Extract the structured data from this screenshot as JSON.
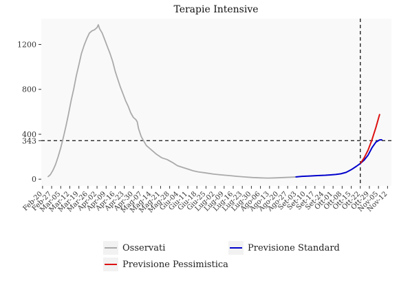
{
  "chart_data": {
    "type": "line",
    "title": "Terapie Intensive",
    "xlabel": "",
    "ylabel": "",
    "x_ticks": [
      "Feb-20",
      "Feb-27",
      "Mar-05",
      "Mar-12",
      "Mar-19",
      "Mar-26",
      "Apr-02",
      "Apr-09",
      "Apr-16",
      "Apr-23",
      "Apr-30",
      "Mag-07",
      "Mag-14",
      "Mag-21",
      "Mag-28",
      "Giu-04",
      "Giu-11",
      "Giu-18",
      "Giu-25",
      "Lug-02",
      "Lug-09",
      "Lug-16",
      "Lug-23",
      "Lug-30",
      "Ago-06",
      "Ago-13",
      "Ago-20",
      "Ago-27",
      "Set-03",
      "Set-10",
      "Set-17",
      "Set-24",
      "Ott-01",
      "Ott-08",
      "Ott-15",
      "Ott-22",
      "Ott-29",
      "Nov-05",
      "Nov-12"
    ],
    "y_ticks": [
      "0",
      "343",
      "400",
      "800",
      "1200"
    ],
    "y_tick_values": [
      0,
      343,
      400,
      800,
      1200
    ],
    "ylim": [
      -60,
      1430
    ],
    "xlim_days": [
      -1,
      269
    ],
    "hline": 343,
    "vline_day": 245,
    "grid": false,
    "legend_position": "bottom",
    "series": [
      {
        "name": "Osservati",
        "color": "#aaaaaa",
        "points": [
          [
            4,
            20
          ],
          [
            6,
            40
          ],
          [
            8,
            80
          ],
          [
            10,
            130
          ],
          [
            12,
            200
          ],
          [
            14,
            280
          ],
          [
            16,
            370
          ],
          [
            18,
            470
          ],
          [
            20,
            580
          ],
          [
            22,
            700
          ],
          [
            24,
            800
          ],
          [
            26,
            920
          ],
          [
            28,
            1020
          ],
          [
            30,
            1120
          ],
          [
            32,
            1190
          ],
          [
            34,
            1250
          ],
          [
            36,
            1300
          ],
          [
            38,
            1320
          ],
          [
            40,
            1330
          ],
          [
            42,
            1350
          ],
          [
            43,
            1375
          ],
          [
            44,
            1340
          ],
          [
            46,
            1300
          ],
          [
            48,
            1240
          ],
          [
            50,
            1180
          ],
          [
            52,
            1120
          ],
          [
            54,
            1050
          ],
          [
            56,
            960
          ],
          [
            58,
            890
          ],
          [
            60,
            820
          ],
          [
            62,
            760
          ],
          [
            64,
            700
          ],
          [
            66,
            650
          ],
          [
            68,
            590
          ],
          [
            70,
            550
          ],
          [
            72,
            530
          ],
          [
            73,
            510
          ],
          [
            74,
            450
          ],
          [
            76,
            380
          ],
          [
            78,
            340
          ],
          [
            80,
            300
          ],
          [
            84,
            260
          ],
          [
            88,
            220
          ],
          [
            92,
            190
          ],
          [
            96,
            175
          ],
          [
            100,
            150
          ],
          [
            104,
            120
          ],
          [
            108,
            105
          ],
          [
            112,
            90
          ],
          [
            116,
            75
          ],
          [
            120,
            65
          ],
          [
            126,
            55
          ],
          [
            132,
            45
          ],
          [
            138,
            38
          ],
          [
            144,
            32
          ],
          [
            150,
            25
          ],
          [
            156,
            20
          ],
          [
            162,
            15
          ],
          [
            168,
            12
          ],
          [
            174,
            10
          ],
          [
            180,
            12
          ],
          [
            186,
            15
          ],
          [
            192,
            18
          ],
          [
            195,
            20
          ]
        ]
      },
      {
        "name": "Previsione Standard",
        "color": "#0000cc",
        "points": [
          [
            195,
            20
          ],
          [
            200,
            25
          ],
          [
            206,
            28
          ],
          [
            212,
            32
          ],
          [
            218,
            35
          ],
          [
            222,
            38
          ],
          [
            226,
            42
          ],
          [
            230,
            48
          ],
          [
            234,
            60
          ],
          [
            238,
            85
          ],
          [
            242,
            115
          ],
          [
            245,
            140
          ],
          [
            248,
            170
          ],
          [
            251,
            215
          ],
          [
            254,
            280
          ],
          [
            257,
            330
          ],
          [
            260,
            350
          ],
          [
            262,
            350
          ]
        ]
      },
      {
        "name": "Previsione Pessimistica",
        "color": "#dd1111",
        "points": [
          [
            245,
            140
          ],
          [
            248,
            190
          ],
          [
            251,
            260
          ],
          [
            254,
            350
          ],
          [
            257,
            460
          ],
          [
            259,
            540
          ],
          [
            260,
            580
          ]
        ]
      }
    ]
  },
  "legend": {
    "items": [
      {
        "label": "Osservati",
        "color": "#aaaaaa"
      },
      {
        "label": "Previsione Standard",
        "color": "#0000cc"
      },
      {
        "label": "Previsione Pessimistica",
        "color": "#dd1111"
      }
    ]
  }
}
